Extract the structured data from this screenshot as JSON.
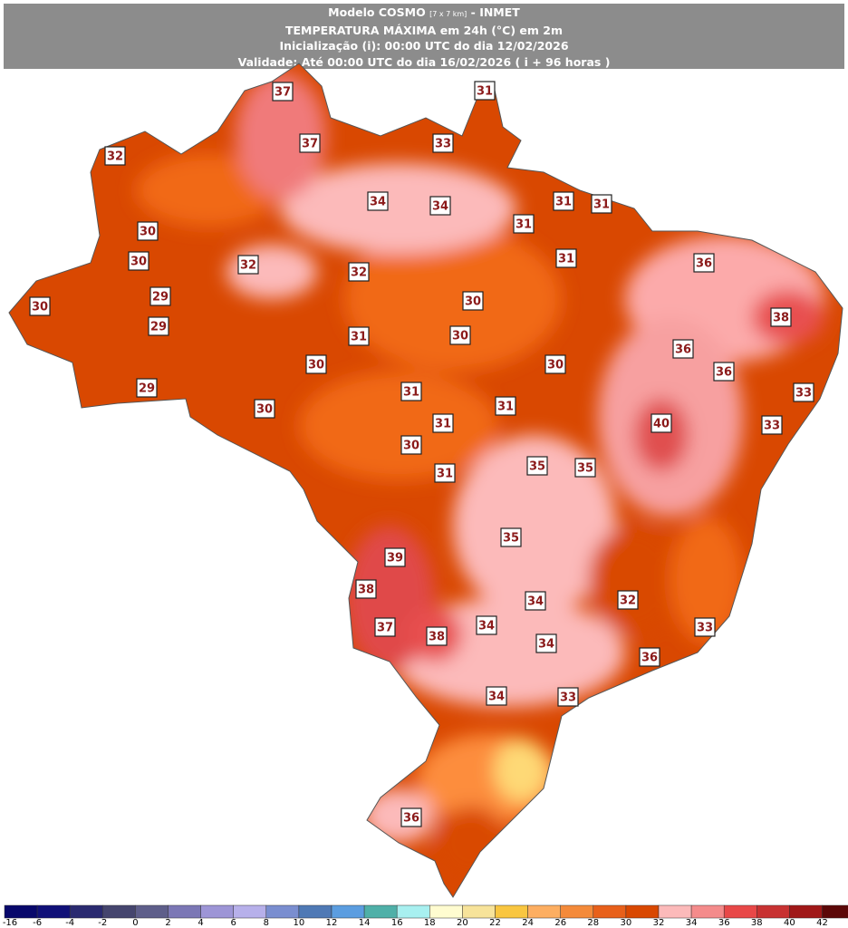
{
  "header": {
    "model": "Modelo COSMO",
    "resolution": "[7 x 7 km]",
    "source": "- INMET",
    "variable": "TEMPERATURA MÁXIMA em 24h (°C) em 2m",
    "initialization": "Inicialização (i): 00:00 UTC do dia 12/02/2026",
    "validity": "Validade: Até 00:00 UTC do dia 16/02/2026 ( i + 96 horas )"
  },
  "labels": [
    37,
    31,
    37,
    33,
    32,
    34,
    34,
    31,
    31,
    31,
    30,
    30,
    32,
    32,
    31,
    29,
    30,
    30,
    36,
    38,
    29,
    31,
    30,
    36,
    30,
    30,
    36,
    29,
    31,
    33,
    30,
    31,
    40,
    33,
    31,
    30,
    35,
    35,
    31,
    35,
    39,
    38,
    34,
    32,
    37,
    34,
    38,
    33,
    34,
    36,
    34,
    33,
    36
  ],
  "colorbar": {
    "ticks": [
      -16,
      -6,
      -4,
      -2,
      0,
      2,
      4,
      6,
      8,
      10,
      12,
      14,
      16,
      18,
      20,
      22,
      24,
      26,
      28,
      30,
      32,
      34,
      36,
      38,
      40,
      42
    ],
    "colors": [
      "#08086b",
      "#101078",
      "#2a2a70",
      "#45456e",
      "#5e5e8a",
      "#7b77b5",
      "#9d95d6",
      "#b7b0ea",
      "#7a8ed0",
      "#4f79b5",
      "#5b9de0",
      "#4fb0a8",
      "#a8f0f0",
      "#fffcd0",
      "#f7e39a",
      "#f9c640",
      "#fdae61",
      "#f48a3a",
      "#e8601a",
      "#d94801",
      "#fcbaba",
      "#f48b8b",
      "#e84848",
      "#c83232",
      "#a01818",
      "#5c0808"
    ]
  }
}
